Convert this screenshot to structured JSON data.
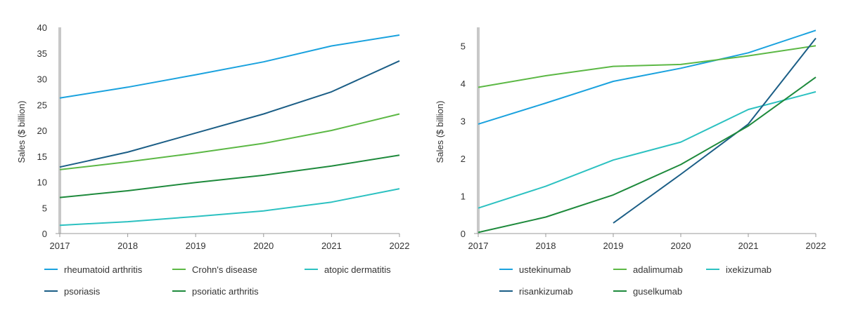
{
  "chart_data": [
    {
      "type": "line",
      "ylabel": "Sales ($ billion)",
      "x": [
        "2017",
        "2018",
        "2019",
        "2020",
        "2021",
        "2022"
      ],
      "yticks": [
        "0",
        "5",
        "10",
        "15",
        "20",
        "25",
        "30",
        "35",
        "40"
      ],
      "ylim": [
        0,
        40
      ],
      "series": [
        {
          "name": "rheumatoid arthritis",
          "color": "#1aa2de",
          "values": [
            26.3,
            28.4,
            30.8,
            33.3,
            36.4,
            38.5
          ]
        },
        {
          "name": "Crohn's disease",
          "color": "#5cb845",
          "values": [
            12.4,
            13.9,
            15.6,
            17.5,
            20.0,
            23.2
          ]
        },
        {
          "name": "atopic dermatitis",
          "color": "#2cc1c1",
          "values": [
            1.6,
            2.3,
            3.3,
            4.4,
            6.1,
            8.7
          ]
        },
        {
          "name": "psoriasis",
          "color": "#1b5e86",
          "values": [
            12.9,
            15.8,
            19.5,
            23.2,
            27.5,
            33.5
          ]
        },
        {
          "name": "psoriatic arthritis",
          "color": "#1e8a3c",
          "values": [
            7.0,
            8.3,
            9.9,
            11.3,
            13.1,
            15.2
          ]
        }
      ],
      "legend_position": "bottom"
    },
    {
      "type": "line",
      "ylabel": "Sales ($ billion)",
      "x": [
        "2017",
        "2018",
        "2019",
        "2020",
        "2021",
        "2022"
      ],
      "yticks": [
        "0",
        "1",
        "2",
        "3",
        "4",
        "5"
      ],
      "ylim": [
        0,
        5.5
      ],
      "series": [
        {
          "name": "ustekinumab",
          "color": "#1aa2de",
          "values": [
            2.92,
            3.48,
            4.06,
            4.41,
            4.82,
            5.42
          ]
        },
        {
          "name": "adalimumab",
          "color": "#5cb845",
          "values": [
            3.9,
            4.21,
            4.46,
            4.51,
            4.74,
            5.01
          ]
        },
        {
          "name": "ixekizumab",
          "color": "#2cc1c1",
          "values": [
            0.68,
            1.26,
            1.96,
            2.44,
            3.31,
            3.78
          ]
        },
        {
          "name": "risankizumab",
          "color": "#1b5e86",
          "values": [
            null,
            null,
            0.28,
            1.58,
            2.92,
            5.21
          ]
        },
        {
          "name": "guselkumab",
          "color": "#1e8a3c",
          "values": [
            0.03,
            0.44,
            1.03,
            1.84,
            2.87,
            4.17
          ]
        }
      ],
      "legend_position": "bottom"
    }
  ]
}
